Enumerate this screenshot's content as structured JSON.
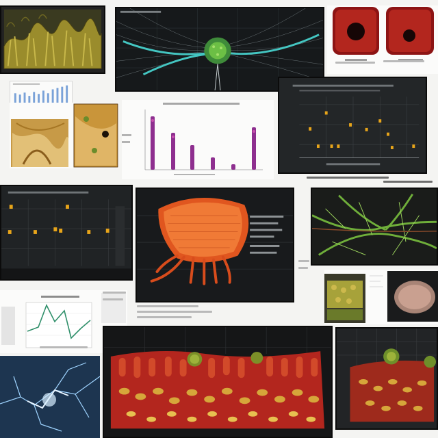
{
  "panels": [
    {
      "name": "olive-fibrous-tissue-panel"
    },
    {
      "name": "cyan-neural-network-panel"
    },
    {
      "name": "red-tissue-pair-panel"
    },
    {
      "name": "small-blue-bar-chart-panel"
    },
    {
      "name": "yellow-tissue-sections-panel"
    },
    {
      "name": "purple-dot-column-plot-panel"
    },
    {
      "name": "scatter-plot-dark-panel-top"
    },
    {
      "name": "scatter-plot-dark-panel-left"
    },
    {
      "name": "orange-organ-render-panel"
    },
    {
      "name": "green-vascular-panel"
    },
    {
      "name": "small-tissue-thumbnails-panel"
    },
    {
      "name": "green-line-chart-panel"
    },
    {
      "name": "blue-lightning-neuron-panel"
    },
    {
      "name": "red-cell-layer-panel"
    },
    {
      "name": "red-green-tissue-panel-right"
    }
  ],
  "colors": {
    "page_background": "#f4f4f2",
    "dark_panel": "#1b1d1f",
    "scatter_marker": "#e8a51a",
    "purple_marker": "#8e2f8f",
    "cyan_fiber": "#44c6c2",
    "organ_orange": "#e0561f",
    "tissue_red": "#b3261e",
    "tissue_yellow": "#d6a63a",
    "vascular_green": "#6fae3a",
    "line_chart_green": "#2f8f6a"
  }
}
